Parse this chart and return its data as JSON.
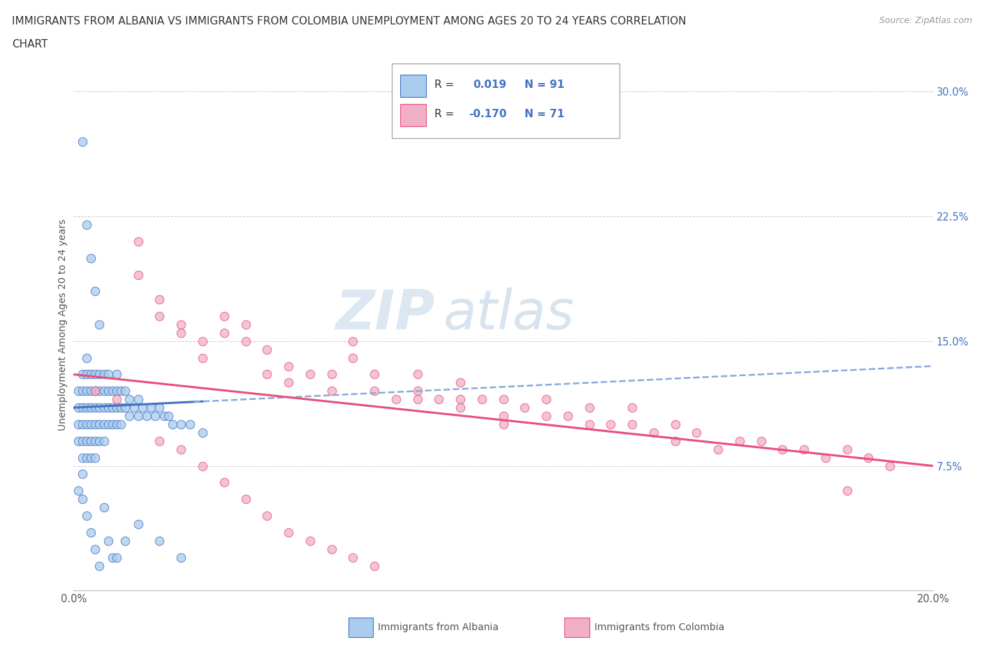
{
  "title_line1": "IMMIGRANTS FROM ALBANIA VS IMMIGRANTS FROM COLOMBIA UNEMPLOYMENT AMONG AGES 20 TO 24 YEARS CORRELATION",
  "title_line2": "CHART",
  "source": "Source: ZipAtlas.com",
  "ylabel": "Unemployment Among Ages 20 to 24 years",
  "xlim": [
    0.0,
    0.2
  ],
  "ylim": [
    0.0,
    0.32
  ],
  "color_albania": "#aaccee",
  "color_colombia": "#f0b0c8",
  "line_color_albania": "#4472c4",
  "line_color_colombia": "#e8507a",
  "line_color_albania_dash": "#88aadd",
  "R_albania": 0.019,
  "N_albania": 91,
  "R_colombia": -0.17,
  "N_colombia": 71,
  "watermark_ZIP": "ZIP",
  "watermark_atlas": "atlas",
  "background_color": "#ffffff",
  "grid_color": "#cccccc",
  "albania_x": [
    0.001,
    0.001,
    0.001,
    0.001,
    0.002,
    0.002,
    0.002,
    0.002,
    0.002,
    0.002,
    0.002,
    0.003,
    0.003,
    0.003,
    0.003,
    0.003,
    0.003,
    0.003,
    0.004,
    0.004,
    0.004,
    0.004,
    0.004,
    0.004,
    0.005,
    0.005,
    0.005,
    0.005,
    0.005,
    0.005,
    0.006,
    0.006,
    0.006,
    0.006,
    0.006,
    0.007,
    0.007,
    0.007,
    0.007,
    0.007,
    0.008,
    0.008,
    0.008,
    0.008,
    0.009,
    0.009,
    0.009,
    0.01,
    0.01,
    0.01,
    0.01,
    0.011,
    0.011,
    0.011,
    0.012,
    0.012,
    0.013,
    0.013,
    0.014,
    0.015,
    0.015,
    0.016,
    0.017,
    0.018,
    0.019,
    0.02,
    0.021,
    0.022,
    0.023,
    0.025,
    0.027,
    0.03,
    0.002,
    0.003,
    0.004,
    0.005,
    0.006,
    0.007,
    0.008,
    0.009,
    0.01,
    0.012,
    0.015,
    0.02,
    0.025,
    0.001,
    0.002,
    0.003,
    0.004,
    0.005,
    0.006
  ],
  "albania_y": [
    0.12,
    0.11,
    0.1,
    0.09,
    0.13,
    0.12,
    0.11,
    0.1,
    0.09,
    0.08,
    0.07,
    0.14,
    0.13,
    0.12,
    0.11,
    0.1,
    0.09,
    0.08,
    0.13,
    0.12,
    0.11,
    0.1,
    0.09,
    0.08,
    0.13,
    0.12,
    0.11,
    0.1,
    0.09,
    0.08,
    0.13,
    0.12,
    0.11,
    0.1,
    0.09,
    0.13,
    0.12,
    0.11,
    0.1,
    0.09,
    0.13,
    0.12,
    0.11,
    0.1,
    0.12,
    0.11,
    0.1,
    0.13,
    0.12,
    0.11,
    0.1,
    0.12,
    0.11,
    0.1,
    0.12,
    0.11,
    0.115,
    0.105,
    0.11,
    0.115,
    0.105,
    0.11,
    0.105,
    0.11,
    0.105,
    0.11,
    0.105,
    0.105,
    0.1,
    0.1,
    0.1,
    0.095,
    0.27,
    0.22,
    0.2,
    0.18,
    0.16,
    0.05,
    0.03,
    0.02,
    0.02,
    0.03,
    0.04,
    0.03,
    0.02,
    0.06,
    0.055,
    0.045,
    0.035,
    0.025,
    0.015
  ],
  "colombia_x": [
    0.005,
    0.01,
    0.015,
    0.015,
    0.02,
    0.02,
    0.025,
    0.025,
    0.03,
    0.03,
    0.035,
    0.035,
    0.04,
    0.04,
    0.045,
    0.045,
    0.05,
    0.05,
    0.055,
    0.06,
    0.06,
    0.065,
    0.065,
    0.07,
    0.07,
    0.075,
    0.08,
    0.08,
    0.085,
    0.09,
    0.09,
    0.095,
    0.1,
    0.1,
    0.105,
    0.11,
    0.11,
    0.115,
    0.12,
    0.12,
    0.125,
    0.13,
    0.13,
    0.135,
    0.14,
    0.14,
    0.145,
    0.15,
    0.155,
    0.16,
    0.165,
    0.17,
    0.175,
    0.18,
    0.185,
    0.19,
    0.02,
    0.025,
    0.03,
    0.035,
    0.04,
    0.045,
    0.05,
    0.055,
    0.06,
    0.065,
    0.07,
    0.08,
    0.09,
    0.1,
    0.18
  ],
  "colombia_y": [
    0.12,
    0.115,
    0.21,
    0.19,
    0.165,
    0.175,
    0.155,
    0.16,
    0.15,
    0.14,
    0.165,
    0.155,
    0.16,
    0.15,
    0.145,
    0.13,
    0.135,
    0.125,
    0.13,
    0.13,
    0.12,
    0.15,
    0.14,
    0.13,
    0.12,
    0.115,
    0.12,
    0.13,
    0.115,
    0.115,
    0.125,
    0.115,
    0.115,
    0.105,
    0.11,
    0.105,
    0.115,
    0.105,
    0.1,
    0.11,
    0.1,
    0.1,
    0.11,
    0.095,
    0.1,
    0.09,
    0.095,
    0.085,
    0.09,
    0.09,
    0.085,
    0.085,
    0.08,
    0.085,
    0.08,
    0.075,
    0.09,
    0.085,
    0.075,
    0.065,
    0.055,
    0.045,
    0.035,
    0.03,
    0.025,
    0.02,
    0.015,
    0.115,
    0.11,
    0.1,
    0.06
  ]
}
